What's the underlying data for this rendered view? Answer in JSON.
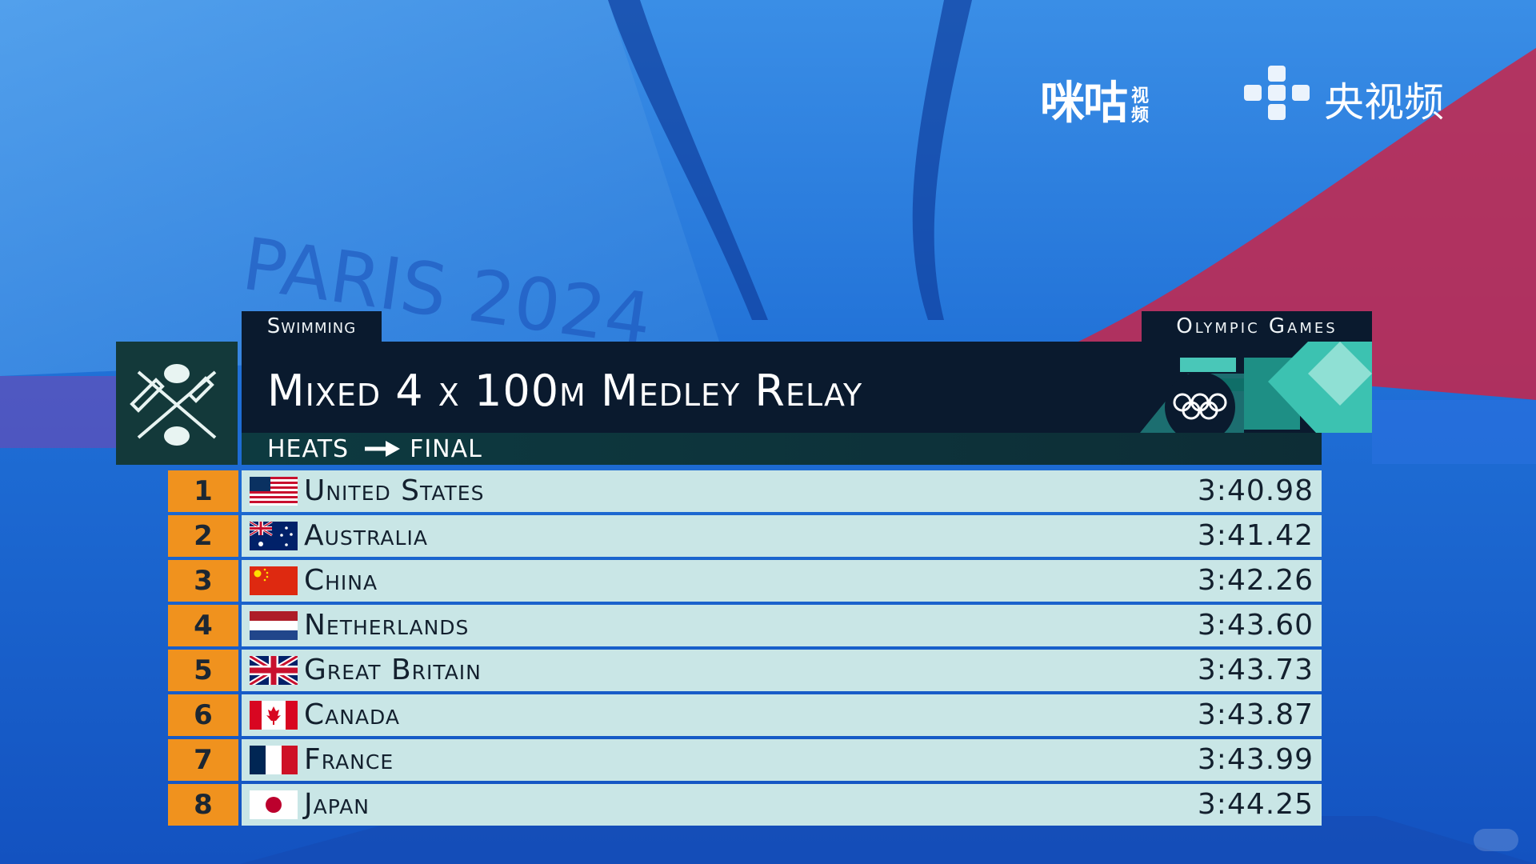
{
  "broadcaster": {
    "migu_name": "咪咕",
    "migu_suffix": "视频",
    "cctv_name": "央视频"
  },
  "header": {
    "sport": "Swimming",
    "games": "Olympic Games",
    "event_title": "Mixed 4 x 100m Medley Relay",
    "stage_from": "HEATS",
    "stage_to": "FINAL"
  },
  "results": [
    {
      "rank": "1",
      "country": "United States",
      "flag": "usa-flag-icon",
      "time": "3:40.98"
    },
    {
      "rank": "2",
      "country": "Australia",
      "flag": "australia-flag-icon",
      "time": "3:41.42"
    },
    {
      "rank": "3",
      "country": "China",
      "flag": "china-flag-icon",
      "time": "3:42.26"
    },
    {
      "rank": "4",
      "country": "Netherlands",
      "flag": "netherlands-flag-icon",
      "time": "3:43.60"
    },
    {
      "rank": "5",
      "country": "Great Britain",
      "flag": "great-britain-flag-icon",
      "time": "3:43.73"
    },
    {
      "rank": "6",
      "country": "Canada",
      "flag": "canada-flag-icon",
      "time": "3:43.87"
    },
    {
      "rank": "7",
      "country": "France",
      "flag": "france-flag-icon",
      "time": "3:43.99"
    },
    {
      "rank": "8",
      "country": "Japan",
      "flag": "japan-flag-icon",
      "time": "3:44.25"
    }
  ],
  "colors": {
    "rank_bg": "#f0921e",
    "row_bg": "#c9e6e6",
    "title_bg": "#0a1a2e",
    "accent_teal": "#2cb5a8"
  }
}
